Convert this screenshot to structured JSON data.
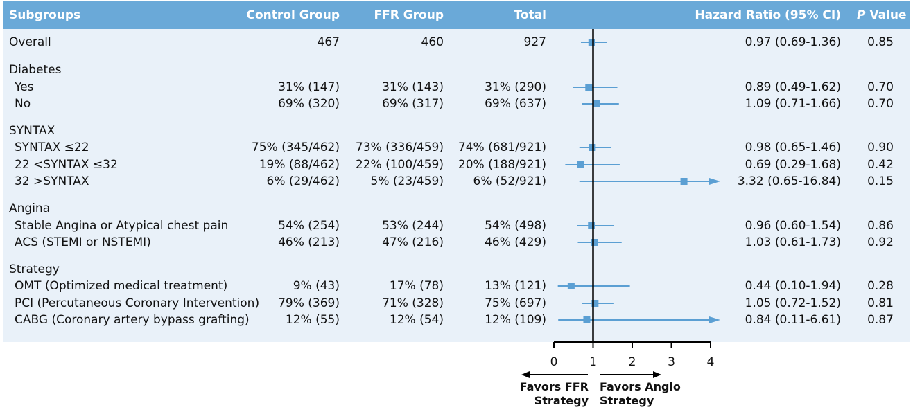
{
  "colors": {
    "header": "#6aa9d8",
    "panel": "#e9f1f9",
    "marker": "#5b9fd3",
    "axis": "#000000"
  },
  "header": {
    "subgroups": "Subgroups",
    "control": "Control Group",
    "ffr": "FFR Group",
    "total": "Total",
    "hr": "Hazard Ratio (95% CI)",
    "p_italic": "P",
    "p_rest": " Value"
  },
  "rows": [
    {
      "kind": "data",
      "label": "Overall",
      "indent": false,
      "control": "467",
      "ffr": "460",
      "total": "927",
      "hr": "0.97 (0.69-1.36)",
      "p": "0.85"
    },
    {
      "kind": "section",
      "label": "Diabetes"
    },
    {
      "kind": "data",
      "label": "Yes",
      "indent": true,
      "control": "31% (147)",
      "ffr": "31% (143)",
      "total": "31% (290)",
      "hr": "0.89 (0.49-1.62)",
      "p": "0.70"
    },
    {
      "kind": "data",
      "label": "No",
      "indent": true,
      "control": "69% (320)",
      "ffr": "69% (317)",
      "total": "69% (637)",
      "hr": "1.09 (0.71-1.66)",
      "p": "0.70"
    },
    {
      "kind": "section",
      "label": "SYNTAX"
    },
    {
      "kind": "data",
      "label": "SYNTAX ≤22",
      "indent": true,
      "control": "75% (345/462)",
      "ffr": "73% (336/459)",
      "total": "74% (681/921)",
      "hr": "0.98 (0.65-1.46)",
      "p": "0.90"
    },
    {
      "kind": "data",
      "label": "22 <SYNTAX ≤32",
      "indent": true,
      "control": "19% (88/462)",
      "ffr": "22% (100/459)",
      "total": "20% (188/921)",
      "hr": "0.69 (0.29-1.68)",
      "p": "0.42"
    },
    {
      "kind": "data",
      "label": "32 >SYNTAX",
      "indent": true,
      "control": "6% (29/462)",
      "ffr": "5% (23/459)",
      "total": "6% (52/921)",
      "hr": "3.32 (0.65-16.84)",
      "p": "0.15"
    },
    {
      "kind": "section",
      "label": "Angina"
    },
    {
      "kind": "data",
      "label": "Stable Angina or Atypical chest pain",
      "indent": true,
      "control": "54% (254)",
      "ffr": "53% (244)",
      "total": "54% (498)",
      "hr": "0.96 (0.60-1.54)",
      "p": "0.86"
    },
    {
      "kind": "data",
      "label": "ACS (STEMI or NSTEMI)",
      "indent": true,
      "control": "46% (213)",
      "ffr": "47% (216)",
      "total": "46% (429)",
      "hr": "1.03 (0.61-1.73)",
      "p": "0.92"
    },
    {
      "kind": "section",
      "label": "Strategy"
    },
    {
      "kind": "data",
      "label": "OMT (Optimized medical treatment)",
      "indent": true,
      "control": "9% (43)",
      "ffr": "17% (78)",
      "total": "13% (121)",
      "hr": "0.44 (0.10-1.94)",
      "p": "0.28"
    },
    {
      "kind": "data",
      "label": "PCI (Percutaneous Coronary Intervention)",
      "indent": true,
      "control": "79% (369)",
      "ffr": "71% (328)",
      "total": "75% (697)",
      "hr": "1.05 (0.72-1.52)",
      "p": "0.81"
    },
    {
      "kind": "data",
      "label": "CABG (Coronary artery bypass grafting)",
      "indent": true,
      "control": "12% (55)",
      "ffr": "12% (54)",
      "total": "12% (109)",
      "hr": "0.84 (0.11-6.61)",
      "p": "0.87"
    }
  ],
  "chart_data": {
    "type": "forest",
    "xlim": [
      0,
      4
    ],
    "xticks": [
      "0",
      "1",
      "2",
      "3",
      "4"
    ],
    "reference": 1,
    "points": [
      {
        "label": "Overall",
        "hr": 0.97,
        "lo": 0.69,
        "hi": 1.36
      },
      {
        "label": "Yes",
        "hr": 0.89,
        "lo": 0.49,
        "hi": 1.62
      },
      {
        "label": "No",
        "hr": 1.09,
        "lo": 0.71,
        "hi": 1.66
      },
      {
        "label": "SYNTAX ≤22",
        "hr": 0.98,
        "lo": 0.65,
        "hi": 1.46
      },
      {
        "label": "22 <SYNTAX ≤32",
        "hr": 0.69,
        "lo": 0.29,
        "hi": 1.68
      },
      {
        "label": "32 >SYNTAX",
        "hr": 3.32,
        "lo": 0.65,
        "hi": 16.84
      },
      {
        "label": "Stable Angina or Atypical chest pain",
        "hr": 0.96,
        "lo": 0.6,
        "hi": 1.54
      },
      {
        "label": "ACS (STEMI or NSTEMI)",
        "hr": 1.03,
        "lo": 0.61,
        "hi": 1.73
      },
      {
        "label": "OMT (Optimized medical treatment)",
        "hr": 0.44,
        "lo": 0.1,
        "hi": 1.94
      },
      {
        "label": "PCI (Percutaneous Coronary Intervention)",
        "hr": 1.05,
        "lo": 0.72,
        "hi": 1.52
      },
      {
        "label": "CABG (Coronary artery bypass grafting)",
        "hr": 0.84,
        "lo": 0.11,
        "hi": 6.61
      }
    ],
    "favors_left": [
      "Favors FFR",
      "Strategy"
    ],
    "favors_right": [
      "Favors Angio",
      "Strategy"
    ]
  }
}
